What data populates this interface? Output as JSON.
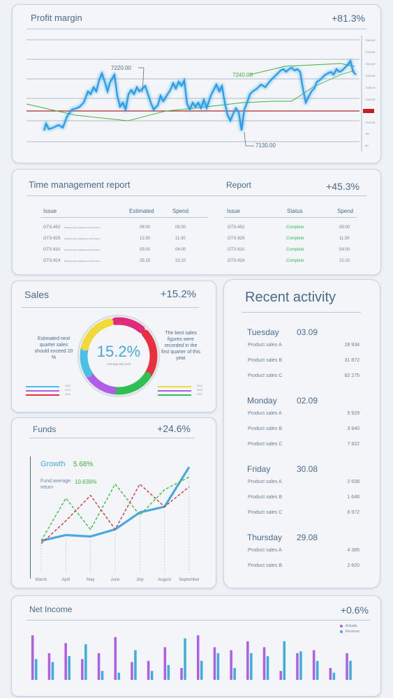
{
  "profit": {
    "title": "Profit margin",
    "value": "+81.3%",
    "label_high": "7220.00",
    "label_mid": "7240.00",
    "label_low": "7130.00",
    "axis_ticks": [
      "7260.00",
      "7240.00",
      "7220.00",
      "7200.00",
      "7180.00",
      "7160.00",
      "7140.00",
      "7120.00",
      "1M",
      "5d"
    ]
  },
  "time_report": {
    "title": "Time management report",
    "report_title": "Report",
    "value": "+45.3%",
    "left_headers": [
      "Issue",
      "Estimated",
      "Spend"
    ],
    "right_headers": [
      "Issue",
      "Status",
      "Spend"
    ],
    "rows": [
      {
        "issue": "GTS-452",
        "desc": "Testing a new prototype for the system",
        "estimated": "06:00",
        "spend": "05:00",
        "issue2": "GTS-452",
        "status": "Complete",
        "spend2": "05:00"
      },
      {
        "issue": "GTS-829",
        "desc": "Testing a new prototype for the system",
        "estimated": "12:30",
        "spend": "11:30",
        "issue2": "GTS-829",
        "status": "Complete",
        "spend2": "11:30"
      },
      {
        "issue": "GTS-610",
        "desc": "Testing a new prototype for the system",
        "estimated": "03:00",
        "spend": "04:00",
        "issue2": "GTS-610",
        "status": "Complete",
        "spend2": "04:00"
      },
      {
        "issue": "GTS-924",
        "desc": "Testing a new prototype for the system",
        "estimated": "25:15",
        "spend": "22:10",
        "issue2": "GTS-924",
        "status": "Complete",
        "spend2": "22:10"
      }
    ]
  },
  "sales": {
    "title": "Sales",
    "value": "+15.2%",
    "donut_value": "15.2%",
    "donut_caption": "Average last year",
    "left_note": "Estimated next quarter sales should exceed 20 %",
    "right_note": "The best sales figures were recorded in the first quarter of this year",
    "segment_colors": [
      "#e02a7a",
      "#e83040",
      "#2fbf52",
      "#b05ee8",
      "#49c0e8",
      "#f2d93a"
    ],
    "legend_left": [
      {
        "color": "#49c0e8",
        "year": "2022"
      },
      {
        "color": "#b05ee8",
        "year": "2023"
      },
      {
        "color": "#e83040",
        "year": "2024"
      }
    ],
    "legend_right": [
      {
        "color": "#f2d93a",
        "year": "2022"
      },
      {
        "color": "#b05ee8",
        "year": "2023"
      },
      {
        "color": "#2fbf52",
        "year": "2024"
      }
    ]
  },
  "funds": {
    "title": "Funds",
    "value": "+24.6%",
    "growth_label": "Growth",
    "growth_value": "5.68%",
    "avg_label": "Fund average return",
    "avg_value": "10.639%",
    "chart_data": {
      "type": "line",
      "x": [
        "March",
        "April",
        "May",
        "June",
        "July",
        "August",
        "September"
      ],
      "series": [
        {
          "color": "#4aa8e0",
          "values": [
            10,
            14,
            13,
            18,
            30,
            34,
            62
          ]
        },
        {
          "color": "#39c039",
          "values": [
            10,
            40,
            18,
            50,
            28,
            46,
            55
          ]
        },
        {
          "color": "#d43a3a",
          "values": [
            8,
            24,
            42,
            18,
            50,
            34,
            48
          ]
        }
      ]
    }
  },
  "activity": {
    "title": "Recent activity",
    "days": [
      {
        "day": "Tuesday",
        "date": "03.09",
        "items": [
          {
            "label": "Product sales A",
            "value": "28 934"
          },
          {
            "label": "Product sales B",
            "value": "31 872"
          },
          {
            "label": "Product sales C",
            "value": "82 275"
          }
        ]
      },
      {
        "day": "Monday",
        "date": "02.09",
        "items": [
          {
            "label": "Product sales A",
            "value": "5 929"
          },
          {
            "label": "Product sales B",
            "value": "3 940"
          },
          {
            "label": "Product sales C",
            "value": "7 922"
          }
        ]
      },
      {
        "day": "Friday",
        "date": "30.08",
        "items": [
          {
            "label": "Product sales A",
            "value": "2 638"
          },
          {
            "label": "Product sales B",
            "value": "1 648"
          },
          {
            "label": "Product sales C",
            "value": "8 972"
          }
        ]
      },
      {
        "day": "Thursday",
        "date": "29.08",
        "items": [
          {
            "label": "Product sales A",
            "value": "4 385"
          },
          {
            "label": "Product sales B",
            "value": "2 820"
          }
        ]
      }
    ]
  },
  "net_income": {
    "title": "Net Income",
    "value": "+0.6%",
    "legend": [
      {
        "label": "Actuals",
        "color": "#b05ee8"
      },
      {
        "label": "Revenue",
        "color": "#3aaee0"
      }
    ],
    "chart_data": {
      "type": "bar",
      "series": [
        {
          "name": "Actuals",
          "values": [
            75,
            45,
            62,
            35,
            45,
            72,
            30,
            32,
            55,
            20,
            75,
            55,
            50,
            65,
            55,
            15,
            45,
            50,
            20,
            45
          ]
        },
        {
          "name": "Revenue",
          "values": [
            35,
            30,
            40,
            60,
            15,
            12,
            50,
            15,
            25,
            70,
            32,
            45,
            20,
            45,
            40,
            65,
            48,
            32,
            12,
            32
          ]
        }
      ]
    }
  }
}
